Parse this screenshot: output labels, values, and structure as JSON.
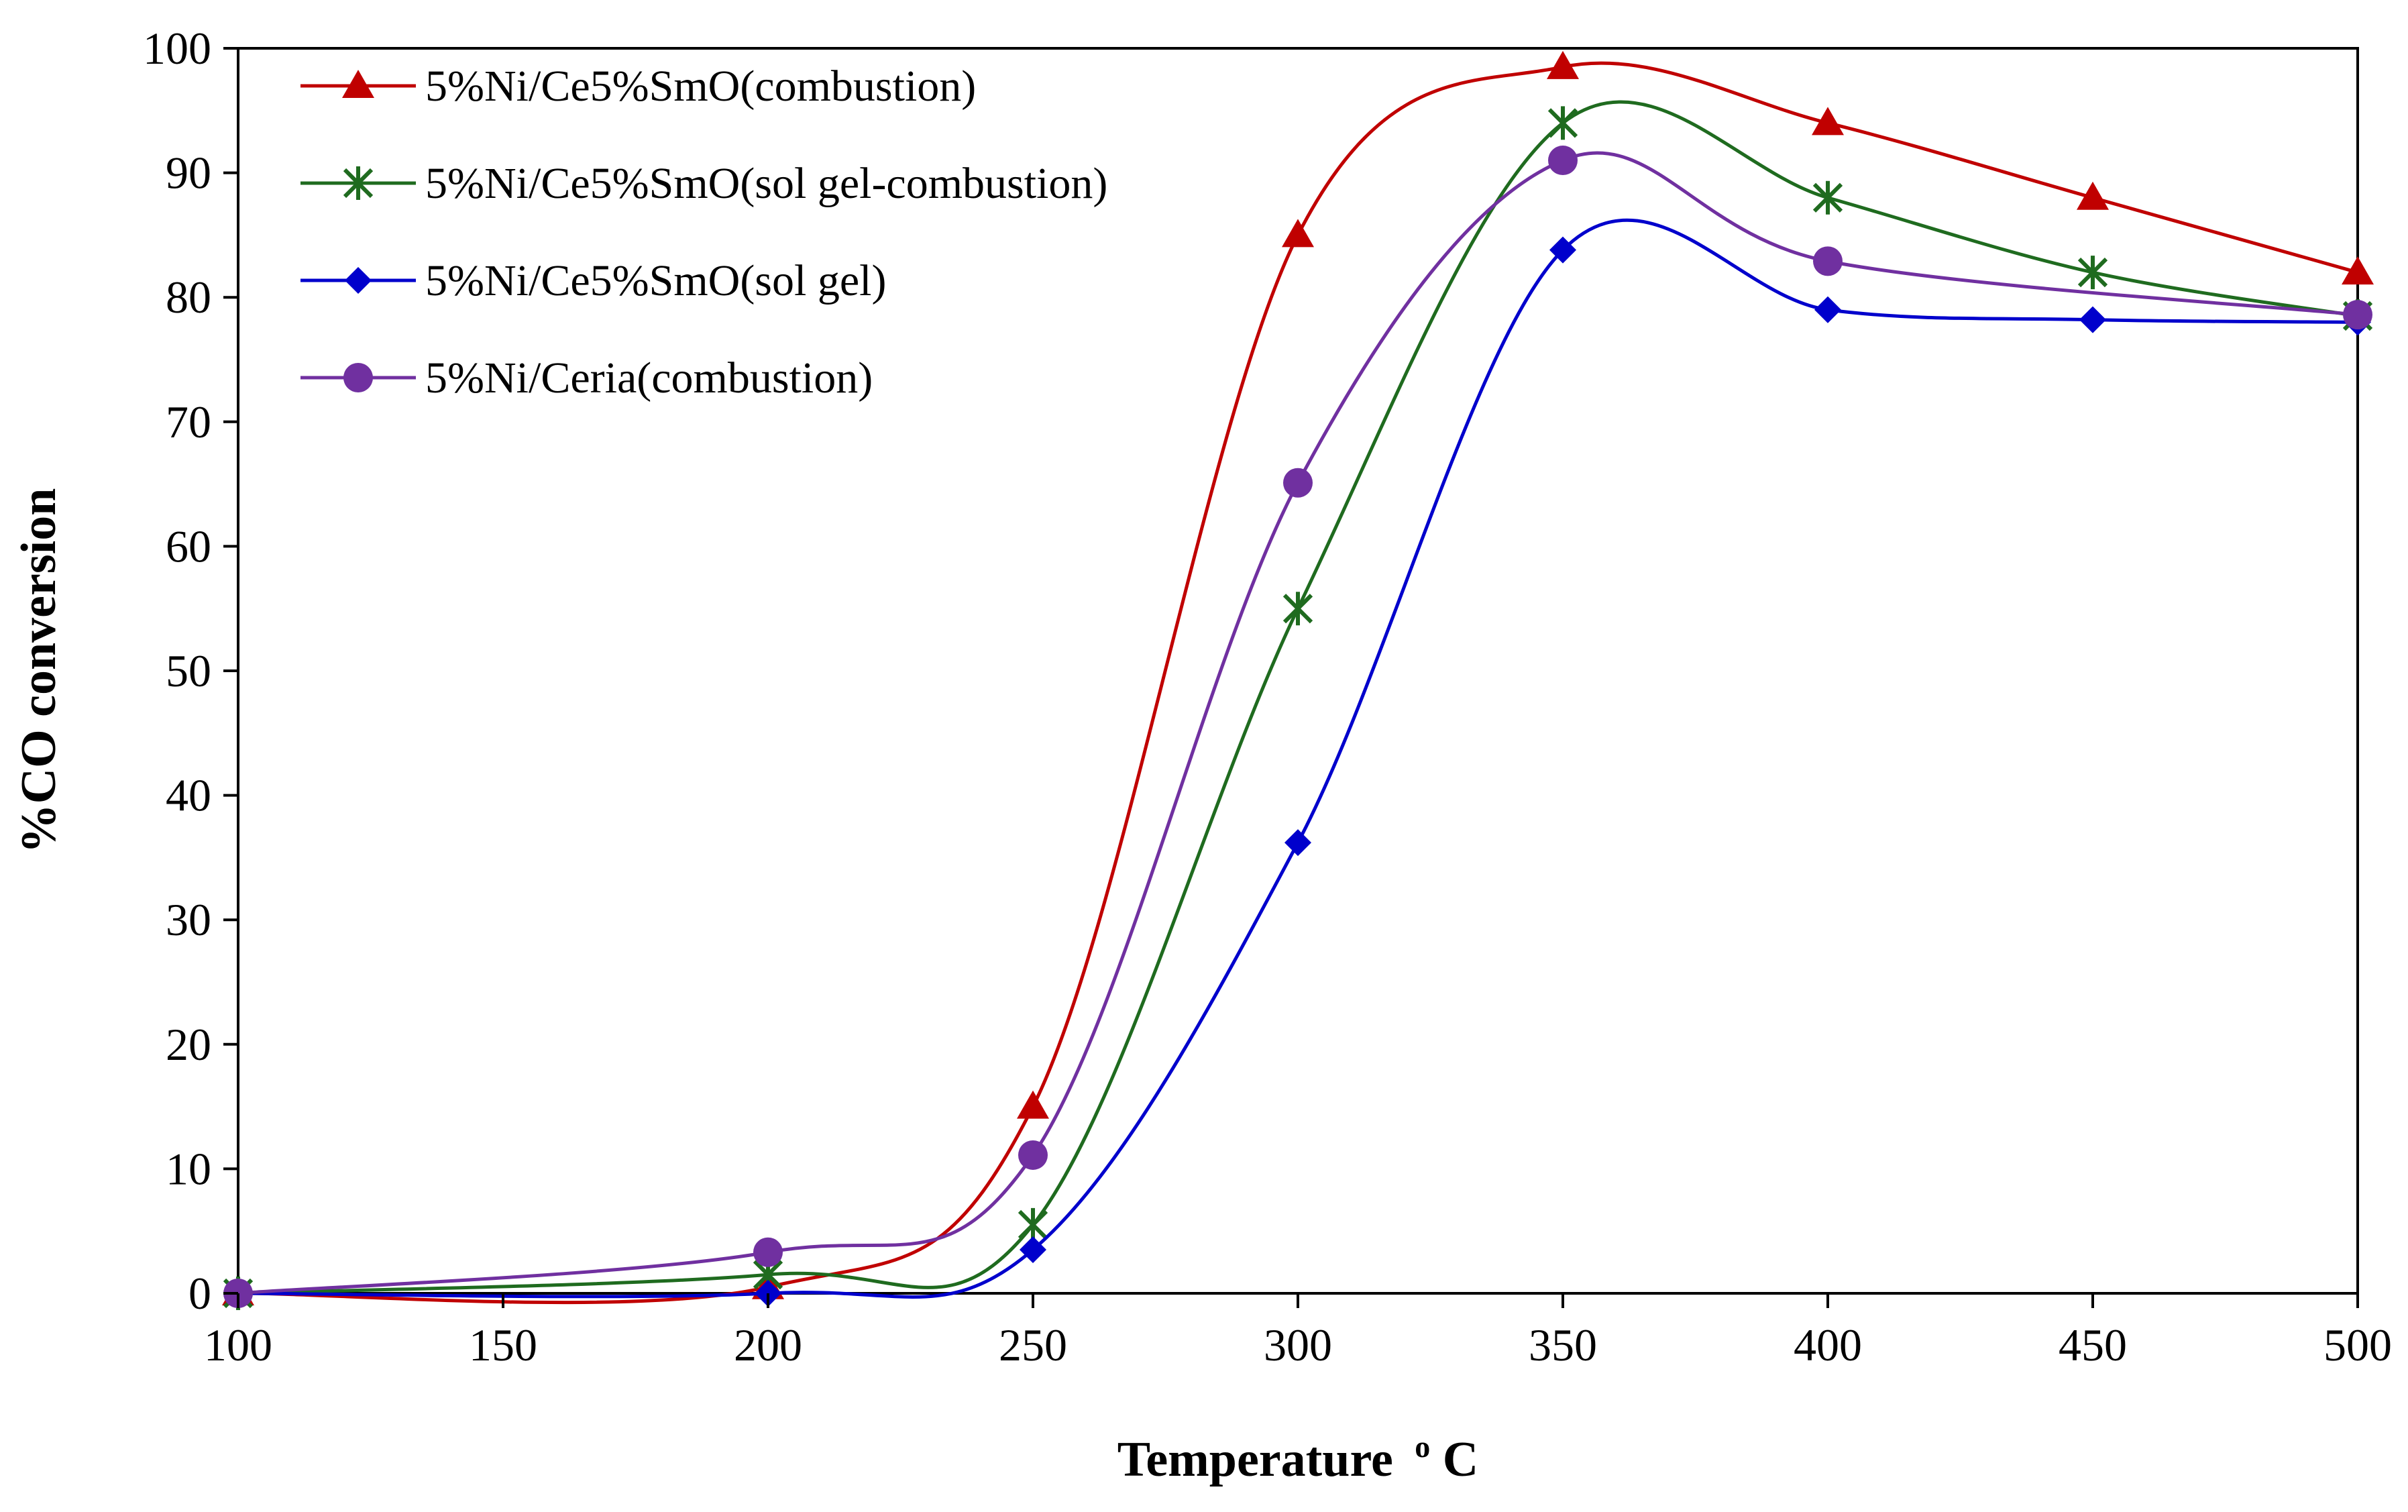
{
  "chart_data": {
    "type": "line",
    "title": "",
    "xlabel": "Temperature",
    "xlabel_unit": "C",
    "xlabel_degree": "o",
    "ylabel": "%CO conversion",
    "xlim": [
      100,
      500
    ],
    "ylim": [
      0,
      100
    ],
    "xticks": [
      100,
      150,
      200,
      250,
      300,
      350,
      400,
      450,
      500
    ],
    "yticks": [
      0,
      10,
      20,
      30,
      40,
      50,
      60,
      70,
      80,
      90,
      100
    ],
    "grid": false,
    "legend_position": "top-left",
    "x": [
      100,
      200,
      250,
      300,
      350,
      400,
      450,
      500
    ],
    "series": [
      {
        "name": "5%Ni/Ce5%SmO(combustion)",
        "color": "#c00000",
        "marker": "triangle",
        "values": [
          0,
          0.5,
          15,
          85,
          98.5,
          94,
          88,
          82
        ]
      },
      {
        "name": "5%Ni/Ce5%SmO(sol gel-combustion)",
        "color": "#1f6b1f",
        "marker": "asterisk",
        "values": [
          0,
          1.5,
          5.5,
          55,
          94,
          88,
          82,
          78.5
        ]
      },
      {
        "name": "5%Ni/Ce5%SmO(sol gel)",
        "color": "#0000cc",
        "marker": "diamond",
        "values": [
          0,
          0,
          3.5,
          36.2,
          83.8,
          79,
          78.2,
          78
        ]
      },
      {
        "name": "5%Ni/Ceria(combustion)",
        "color": "#7030a0",
        "marker": "circle",
        "values": [
          0,
          3.3,
          11.1,
          65.1,
          91,
          82.9,
          null,
          78.6
        ]
      }
    ]
  }
}
